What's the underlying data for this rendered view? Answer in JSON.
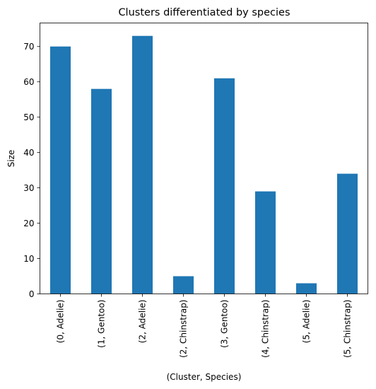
{
  "chart_data": {
    "type": "bar",
    "title": "Clusters differentiated by species",
    "xlabel": "(Cluster, Species)",
    "ylabel": "Size",
    "categories": [
      "(0, Adelie)",
      "(1, Gentoo)",
      "(2, Adelie)",
      "(2, Chinstrap)",
      "(3, Gentoo)",
      "(4, Chinstrap)",
      "(5, Adelie)",
      "(5, Chinstrap)"
    ],
    "values": [
      70,
      58,
      73,
      5,
      61,
      29,
      3,
      34
    ],
    "ylim": [
      0,
      76.65
    ],
    "yticks": [
      0,
      10,
      20,
      30,
      40,
      50,
      60,
      70
    ],
    "grid": false,
    "bar_color": "#1f77b4"
  }
}
